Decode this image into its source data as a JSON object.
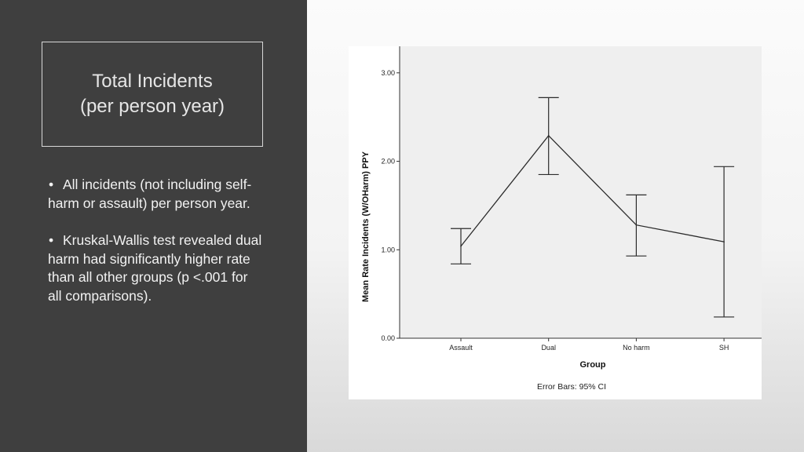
{
  "slide": {
    "title_line1": "Total Incidents",
    "title_line2": "(per person year)",
    "bullets": [
      "All incidents (not including self-harm or assault) per person year.",
      "Kruskal-Wallis test revealed dual harm had significantly higher rate than all other groups (p <.001 for all comparisons)."
    ],
    "bullet_glyph": "•"
  },
  "colors": {
    "left_panel": "#3f3f3f",
    "plot_background": "#efefef",
    "line": "#2b2b2b"
  },
  "chart_data": {
    "type": "line",
    "categories": [
      "Assault",
      "Dual",
      "No harm",
      "SH"
    ],
    "values": [
      1.04,
      2.29,
      1.28,
      1.09
    ],
    "error_bars": {
      "lower": [
        0.84,
        1.85,
        0.93,
        0.24
      ],
      "upper": [
        1.24,
        2.72,
        1.62,
        1.94
      ]
    },
    "xlabel": "Group",
    "ylabel": "Mean Rate Incidents (W/OHarm) PPY",
    "ylim": [
      0,
      3.3
    ],
    "yticks": [
      "0.00",
      "1.00",
      "2.00",
      "3.00"
    ],
    "footnote": "Error Bars: 95% CI",
    "grid": false
  }
}
